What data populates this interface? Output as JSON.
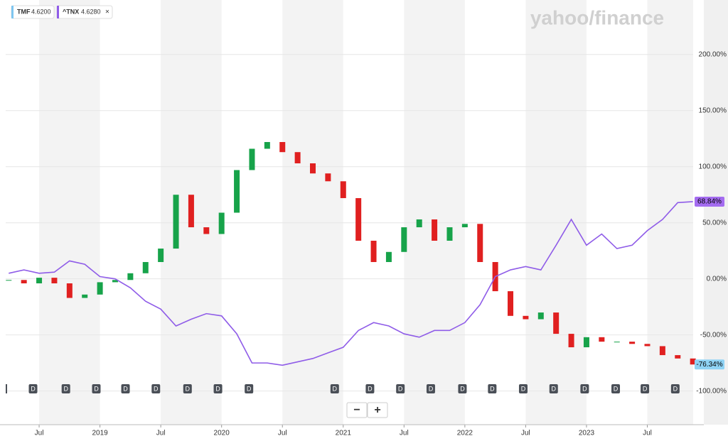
{
  "chart_data": {
    "type": "stock",
    "brand": "yahoo/finance",
    "xlim": [
      2018.225,
      2023.877
    ],
    "xticks": [
      {
        "value": 2018.5,
        "label": "Jul"
      },
      {
        "value": 2019,
        "label": "2019"
      },
      {
        "value": 2019.5,
        "label": "Jul"
      },
      {
        "value": 2020,
        "label": "2020"
      },
      {
        "value": 2020.5,
        "label": "Jul"
      },
      {
        "value": 2021,
        "label": "2021"
      },
      {
        "value": 2021.5,
        "label": "Jul"
      },
      {
        "value": 2022,
        "label": "2022"
      },
      {
        "value": 2022.5,
        "label": "Jul"
      },
      {
        "value": 2023,
        "label": "2023"
      },
      {
        "value": 2023.5,
        "label": "Jul"
      }
    ],
    "ylim": [
      -130,
      248
    ],
    "yticks": [
      {
        "value": -100,
        "label": "-100.00%"
      },
      {
        "value": -50,
        "label": "-50.00%"
      },
      {
        "value": 0,
        "label": "0.00%"
      },
      {
        "value": 50,
        "label": "50.00%"
      },
      {
        "value": 100,
        "label": "100.00%"
      },
      {
        "value": 150,
        "label": "150.00%"
      },
      {
        "value": 200,
        "label": "200.00%"
      }
    ],
    "grid": true,
    "x": [
      2018.25,
      2018.375,
      2018.5,
      2018.625,
      2018.75,
      2018.875,
      2019,
      2019.125,
      2019.25,
      2019.375,
      2019.5,
      2019.625,
      2019.75,
      2019.875,
      2020,
      2020.125,
      2020.25,
      2020.375,
      2020.5,
      2020.625,
      2020.75,
      2020.875,
      2021,
      2021.125,
      2021.25,
      2021.375,
      2021.5,
      2021.625,
      2021.75,
      2021.875,
      2022,
      2022.125,
      2022.25,
      2022.375,
      2022.5,
      2022.625,
      2022.75,
      2022.875,
      2023,
      2023.125,
      2023.25,
      2023.375,
      2023.5,
      2023.625,
      2023.75,
      2023.875
    ],
    "series": [
      {
        "name": "TMF",
        "quote": "4.6200",
        "type": "candlestick",
        "color": "#7fc6f0",
        "up_color": "#17a34a",
        "down_color": "#e02020",
        "tag_color": "#8fd3f5",
        "last_label": "-76.34%",
        "values": [
          -1,
          -4,
          1,
          -4,
          -17,
          -14,
          -3,
          -1,
          5,
          15,
          27,
          75,
          46,
          40,
          59,
          97,
          116,
          122,
          113,
          103,
          94,
          87,
          72,
          34,
          15,
          24,
          46,
          53,
          34,
          46,
          49,
          15,
          -11,
          -33,
          -36,
          -30,
          -49,
          -61,
          -52,
          -56,
          -56,
          -58,
          -60,
          -68,
          -71,
          -76.34
        ]
      },
      {
        "name": "^TNX",
        "quote": "4.6280",
        "type": "line",
        "color": "#8f5ce8",
        "tag_color": "#a46cf0",
        "last_label": "68.84%",
        "values": [
          5,
          8,
          5,
          6,
          16,
          13,
          2,
          0,
          -8,
          -20,
          -27,
          -42,
          -36,
          -31,
          -33,
          -49,
          -75,
          -75,
          -77,
          -74,
          -71,
          -66,
          -61,
          -46,
          -39,
          -42,
          -49,
          -52,
          -46,
          -46,
          -39,
          -23,
          2,
          8,
          11,
          8,
          30,
          53,
          30,
          40,
          27,
          30,
          43,
          53,
          68,
          68.84
        ]
      }
    ],
    "dividend_label": "D",
    "dividends": [
      2018.45,
      2018.72,
      2018.97,
      2019.21,
      2019.46,
      2019.72,
      2019.97,
      2020.225,
      2020.93,
      2021.22,
      2021.47,
      2021.72,
      2021.98,
      2022.225,
      2022.48,
      2022.73,
      2022.985,
      2023.24,
      2023.48,
      2023.73
    ],
    "zoom_out": "−",
    "zoom_in": "+"
  }
}
